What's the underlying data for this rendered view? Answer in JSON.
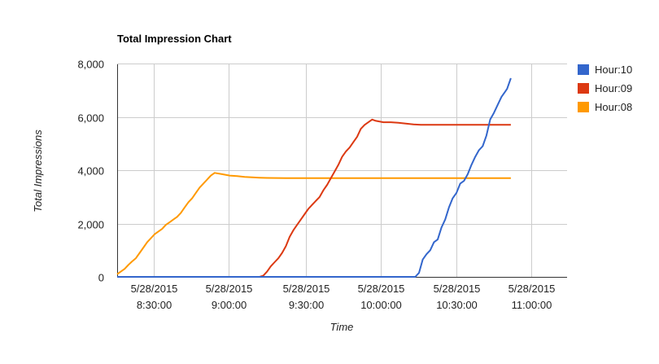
{
  "chart_data": {
    "type": "line",
    "title": "Total Impression Chart",
    "xlabel": "Time",
    "ylabel": "Total Impressions",
    "x_range_minutes": [
      0,
      240
    ],
    "ylim": [
      0,
      8000
    ],
    "grid": true,
    "legend_position": "right",
    "y_ticks": [
      {
        "value": 0,
        "label": "0"
      },
      {
        "value": 2000,
        "label": "2,000"
      },
      {
        "value": 4000,
        "label": "4,000"
      },
      {
        "value": 6000,
        "label": "6,000"
      },
      {
        "value": 8000,
        "label": "8,000"
      }
    ],
    "x_ticks": [
      {
        "minute": 19.5,
        "date": "5/28/2015",
        "time": "8:30:00"
      },
      {
        "minute": 59.5,
        "date": "5/28/2015",
        "time": "9:00:00"
      },
      {
        "minute": 100.5,
        "date": "5/28/2015",
        "time": "9:30:00"
      },
      {
        "minute": 140.5,
        "date": "5/28/2015",
        "time": "10:00:00"
      },
      {
        "minute": 181,
        "date": "5/28/2015",
        "time": "10:30:00"
      },
      {
        "minute": 221,
        "date": "5/28/2015",
        "time": "11:00:00"
      }
    ],
    "series": [
      {
        "name": "Hour:10",
        "color": "#3366cc",
        "points": [
          [
            0,
            0
          ],
          [
            159,
            0
          ],
          [
            161,
            150
          ],
          [
            163,
            650
          ],
          [
            165,
            850
          ],
          [
            167,
            1000
          ],
          [
            169,
            1300
          ],
          [
            171,
            1400
          ],
          [
            173,
            1850
          ],
          [
            175,
            2150
          ],
          [
            177,
            2600
          ],
          [
            179,
            2950
          ],
          [
            181,
            3150
          ],
          [
            183,
            3500
          ],
          [
            185,
            3600
          ],
          [
            187,
            3850
          ],
          [
            189,
            4200
          ],
          [
            191,
            4500
          ],
          [
            193,
            4750
          ],
          [
            195,
            4900
          ],
          [
            197,
            5300
          ],
          [
            199,
            5900
          ],
          [
            201,
            6150
          ],
          [
            203,
            6450
          ],
          [
            205,
            6750
          ],
          [
            207,
            6950
          ],
          [
            208,
            7050
          ],
          [
            210,
            7450
          ]
        ]
      },
      {
        "name": "Hour:09",
        "color": "#dc3912",
        "points": [
          [
            0,
            0
          ],
          [
            76,
            0
          ],
          [
            78,
            50
          ],
          [
            80,
            200
          ],
          [
            82,
            400
          ],
          [
            84,
            550
          ],
          [
            86,
            700
          ],
          [
            88,
            900
          ],
          [
            90,
            1150
          ],
          [
            92,
            1500
          ],
          [
            94,
            1750
          ],
          [
            96,
            1950
          ],
          [
            98,
            2150
          ],
          [
            100,
            2350
          ],
          [
            102,
            2550
          ],
          [
            104,
            2700
          ],
          [
            106,
            2850
          ],
          [
            108,
            3000
          ],
          [
            110,
            3250
          ],
          [
            112,
            3450
          ],
          [
            114,
            3700
          ],
          [
            116,
            3950
          ],
          [
            118,
            4200
          ],
          [
            120,
            4500
          ],
          [
            122,
            4700
          ],
          [
            124,
            4850
          ],
          [
            126,
            5050
          ],
          [
            128,
            5250
          ],
          [
            130,
            5550
          ],
          [
            132,
            5700
          ],
          [
            134,
            5800
          ],
          [
            136,
            5900
          ],
          [
            138,
            5850
          ],
          [
            142,
            5800
          ],
          [
            146,
            5800
          ],
          [
            150,
            5780
          ],
          [
            154,
            5750
          ],
          [
            158,
            5720
          ],
          [
            162,
            5700
          ],
          [
            210,
            5700
          ]
        ]
      },
      {
        "name": "Hour:08",
        "color": "#ff9900",
        "points": [
          [
            0,
            100
          ],
          [
            2,
            200
          ],
          [
            4,
            300
          ],
          [
            6,
            450
          ],
          [
            8,
            580
          ],
          [
            10,
            700
          ],
          [
            12,
            900
          ],
          [
            14,
            1100
          ],
          [
            16,
            1300
          ],
          [
            18,
            1450
          ],
          [
            20,
            1600
          ],
          [
            22,
            1700
          ],
          [
            24,
            1800
          ],
          [
            26,
            1950
          ],
          [
            28,
            2050
          ],
          [
            30,
            2150
          ],
          [
            32,
            2250
          ],
          [
            34,
            2400
          ],
          [
            36,
            2600
          ],
          [
            38,
            2800
          ],
          [
            40,
            2950
          ],
          [
            42,
            3150
          ],
          [
            44,
            3350
          ],
          [
            46,
            3500
          ],
          [
            48,
            3650
          ],
          [
            50,
            3800
          ],
          [
            52,
            3900
          ],
          [
            56,
            3850
          ],
          [
            60,
            3800
          ],
          [
            64,
            3780
          ],
          [
            68,
            3750
          ],
          [
            72,
            3730
          ],
          [
            76,
            3720
          ],
          [
            80,
            3710
          ],
          [
            90,
            3700
          ],
          [
            100,
            3700
          ],
          [
            210,
            3700
          ]
        ]
      }
    ]
  }
}
